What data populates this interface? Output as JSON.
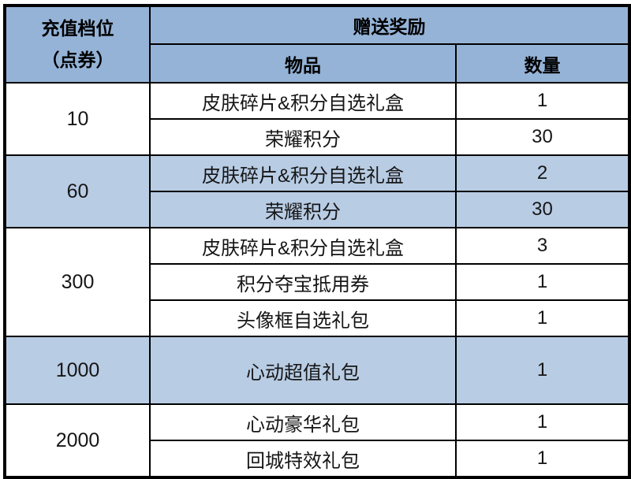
{
  "table": {
    "header": {
      "tier_label_line1": "充值档位",
      "tier_label_line2": "（点券）",
      "reward_label": "赠送奖励",
      "item_label": "物品",
      "qty_label": "数量"
    },
    "groups": [
      {
        "tier": "10",
        "highlight": false,
        "tall": false,
        "rewards": [
          {
            "item": "皮肤碎片&积分自选礼盒",
            "qty": "1"
          },
          {
            "item": "荣耀积分",
            "qty": "30"
          }
        ]
      },
      {
        "tier": "60",
        "highlight": true,
        "tall": false,
        "rewards": [
          {
            "item": "皮肤碎片&积分自选礼盒",
            "qty": "2"
          },
          {
            "item": "荣耀积分",
            "qty": "30"
          }
        ]
      },
      {
        "tier": "300",
        "highlight": false,
        "tall": false,
        "rewards": [
          {
            "item": "皮肤碎片&积分自选礼盒",
            "qty": "3"
          },
          {
            "item": "积分夺宝抵用券",
            "qty": "1"
          },
          {
            "item": "头像框自选礼包",
            "qty": "1"
          }
        ]
      },
      {
        "tier": "1000",
        "highlight": true,
        "tall": true,
        "rewards": [
          {
            "item": "心动超值礼包",
            "qty": "1"
          }
        ]
      },
      {
        "tier": "2000",
        "highlight": false,
        "tall": false,
        "rewards": [
          {
            "item": "心动豪华礼包",
            "qty": "1"
          },
          {
            "item": "回城特效礼包",
            "qty": "1"
          }
        ]
      }
    ],
    "colors": {
      "header_bg": "#95B3D7",
      "highlight_bg": "#B8CCE4",
      "row_bg": "#FFFFFF",
      "border": "#000000",
      "text": "#161616"
    }
  },
  "chart_data": {
    "type": "table",
    "title": "",
    "columns": [
      "充值档位（点券）",
      "物品",
      "数量"
    ],
    "rows": [
      [
        "10",
        "皮肤碎片&积分自选礼盒",
        "1"
      ],
      [
        "10",
        "荣耀积分",
        "30"
      ],
      [
        "60",
        "皮肤碎片&积分自选礼盒",
        "2"
      ],
      [
        "60",
        "荣耀积分",
        "30"
      ],
      [
        "300",
        "皮肤碎片&积分自选礼盒",
        "3"
      ],
      [
        "300",
        "积分夺宝抵用券",
        "1"
      ],
      [
        "300",
        "头像框自选礼包",
        "1"
      ],
      [
        "1000",
        "心动超值礼包",
        "1"
      ],
      [
        "2000",
        "心动豪华礼包",
        "1"
      ],
      [
        "2000",
        "回城特效礼包",
        "1"
      ]
    ],
    "layout_hints": {
      "merged_tier_cells": true,
      "highlight_rows_tiers": [
        "60",
        "1000"
      ],
      "grid": true
    }
  }
}
